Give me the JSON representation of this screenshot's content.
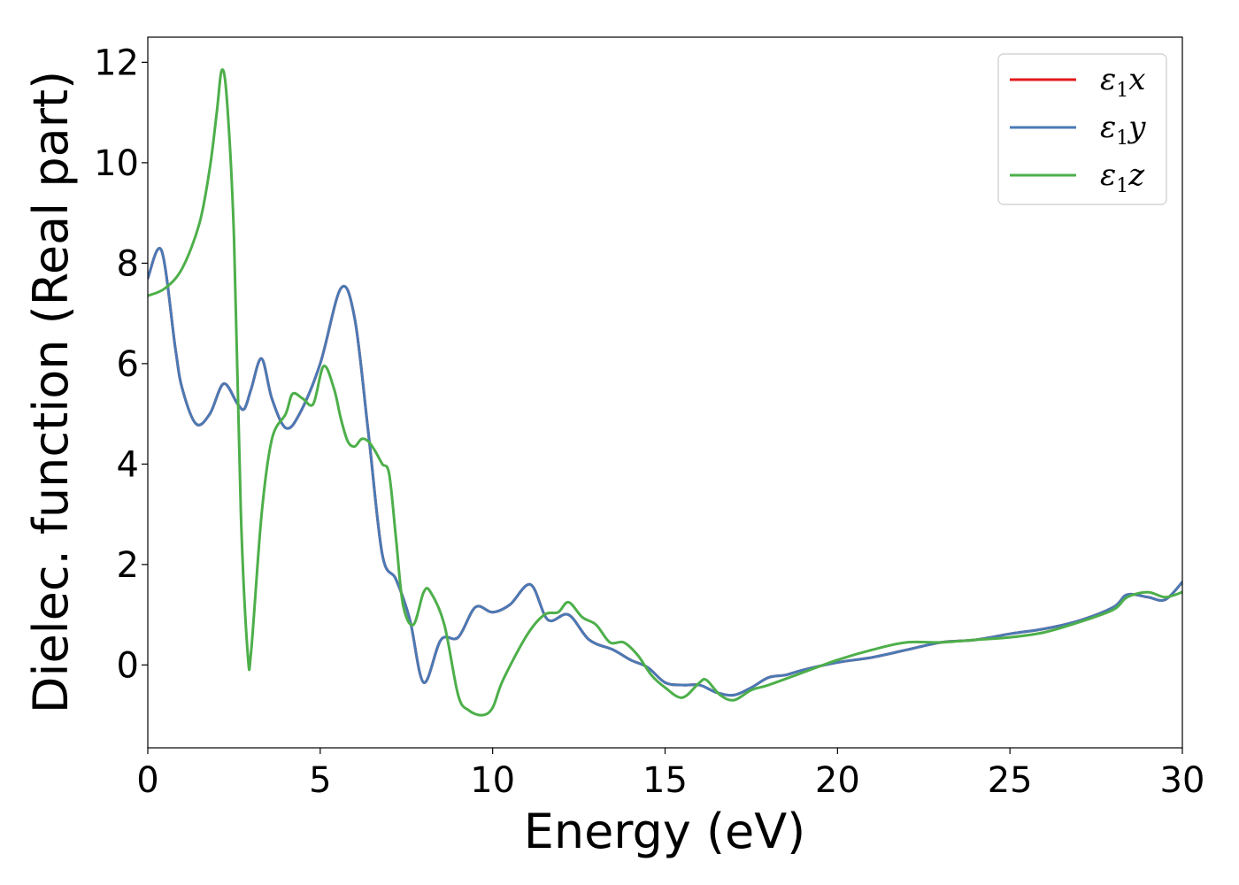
{
  "chart_data": {
    "type": "line",
    "xlabel": "Energy (eV)",
    "ylabel": "Dielec. function (Real part)",
    "xlim": [
      0,
      30
    ],
    "ylim": [
      -1.65,
      12.5
    ],
    "xticks": [
      0,
      5,
      10,
      15,
      20,
      25,
      30
    ],
    "yticks": [
      0,
      2,
      4,
      6,
      8,
      10,
      12
    ],
    "grid": false,
    "legend_position": "top-right",
    "series": [
      {
        "name": "ε1x",
        "legend": {
          "base": "ε",
          "sub": "1",
          "suffix": "x"
        },
        "color": "#e41a1c",
        "x": [
          0,
          0.4,
          0.8,
          1.0,
          1.4,
          1.8,
          2.2,
          2.6,
          2.8,
          3.0,
          3.3,
          3.6,
          4.0,
          4.4,
          5.0,
          5.6,
          6.0,
          6.4,
          6.8,
          7.2,
          7.6,
          8.0,
          8.5,
          9.0,
          9.5,
          10.0,
          10.5,
          11.1,
          11.6,
          12.2,
          12.8,
          13.5,
          14.0,
          14.5,
          15.0,
          15.5,
          16.0,
          16.5,
          17.0,
          17.5,
          18.0,
          18.5,
          19.0,
          20.0,
          21.0,
          22.0,
          23.0,
          24.0,
          25.0,
          26.0,
          27.0,
          28.0,
          28.4,
          29.0,
          29.5,
          30.0
        ],
        "y": [
          7.7,
          8.25,
          6.3,
          5.5,
          4.8,
          5.0,
          5.6,
          5.2,
          5.1,
          5.5,
          6.1,
          5.3,
          4.72,
          5.0,
          6.0,
          7.5,
          6.9,
          4.6,
          2.2,
          1.7,
          0.9,
          -0.35,
          0.5,
          0.55,
          1.15,
          1.05,
          1.2,
          1.6,
          0.9,
          1.0,
          0.5,
          0.3,
          0.1,
          -0.05,
          -0.35,
          -0.4,
          -0.4,
          -0.55,
          -0.6,
          -0.45,
          -0.25,
          -0.2,
          -0.1,
          0.05,
          0.15,
          0.3,
          0.45,
          0.5,
          0.62,
          0.72,
          0.88,
          1.15,
          1.4,
          1.35,
          1.3,
          1.65
        ]
      },
      {
        "name": "ε1y",
        "legend": {
          "base": "ε",
          "sub": "1",
          "suffix": "y"
        },
        "color": "#4a7ab5",
        "x": [
          0,
          0.4,
          0.8,
          1.0,
          1.4,
          1.8,
          2.2,
          2.6,
          2.8,
          3.0,
          3.3,
          3.6,
          4.0,
          4.4,
          5.0,
          5.6,
          6.0,
          6.4,
          6.8,
          7.2,
          7.6,
          8.0,
          8.5,
          9.0,
          9.5,
          10.0,
          10.5,
          11.1,
          11.6,
          12.2,
          12.8,
          13.5,
          14.0,
          14.5,
          15.0,
          15.5,
          16.0,
          16.5,
          17.0,
          17.5,
          18.0,
          18.5,
          19.0,
          20.0,
          21.0,
          22.0,
          23.0,
          24.0,
          25.0,
          26.0,
          27.0,
          28.0,
          28.4,
          29.0,
          29.5,
          30.0
        ],
        "y": [
          7.7,
          8.25,
          6.3,
          5.5,
          4.8,
          5.0,
          5.6,
          5.2,
          5.1,
          5.5,
          6.1,
          5.3,
          4.72,
          5.0,
          6.0,
          7.5,
          6.9,
          4.6,
          2.2,
          1.7,
          0.9,
          -0.35,
          0.5,
          0.55,
          1.15,
          1.05,
          1.2,
          1.6,
          0.9,
          1.0,
          0.5,
          0.3,
          0.1,
          -0.05,
          -0.35,
          -0.4,
          -0.4,
          -0.55,
          -0.6,
          -0.45,
          -0.25,
          -0.2,
          -0.1,
          0.05,
          0.15,
          0.3,
          0.45,
          0.5,
          0.62,
          0.72,
          0.88,
          1.15,
          1.4,
          1.35,
          1.3,
          1.65
        ]
      },
      {
        "name": "ε1z",
        "legend": {
          "base": "ε",
          "sub": "1",
          "suffix": "z"
        },
        "color": "#4daf4a",
        "x": [
          0,
          0.5,
          1.0,
          1.5,
          1.8,
          2.0,
          2.15,
          2.3,
          2.5,
          2.7,
          2.9,
          3.0,
          3.3,
          3.6,
          4.0,
          4.2,
          4.5,
          4.8,
          5.1,
          5.4,
          5.6,
          5.8,
          6.0,
          6.2,
          6.4,
          6.6,
          6.8,
          7.0,
          7.2,
          7.4,
          7.7,
          8.0,
          8.2,
          8.6,
          9.0,
          9.3,
          9.7,
          10.0,
          10.3,
          11.0,
          11.5,
          11.9,
          12.2,
          12.6,
          13.0,
          13.4,
          13.8,
          14.2,
          14.6,
          15.0,
          15.5,
          16.0,
          16.2,
          16.6,
          17.0,
          17.5,
          18.0,
          19.0,
          20.0,
          21.0,
          22.0,
          23.0,
          24.0,
          25.0,
          26.0,
          27.0,
          28.0,
          28.4,
          29.0,
          29.5,
          30.0
        ],
        "y": [
          7.35,
          7.5,
          7.9,
          8.8,
          9.9,
          11.0,
          11.85,
          11.2,
          8.5,
          3.0,
          0.2,
          0.3,
          3.0,
          4.5,
          5.0,
          5.4,
          5.3,
          5.2,
          5.95,
          5.5,
          4.9,
          4.45,
          4.35,
          4.5,
          4.45,
          4.25,
          4.0,
          3.8,
          2.5,
          1.2,
          0.8,
          1.45,
          1.45,
          0.8,
          -0.6,
          -0.9,
          -1.0,
          -0.85,
          -0.3,
          0.6,
          1.0,
          1.05,
          1.25,
          0.95,
          0.8,
          0.45,
          0.45,
          0.2,
          -0.2,
          -0.45,
          -0.65,
          -0.35,
          -0.3,
          -0.6,
          -0.7,
          -0.5,
          -0.4,
          -0.15,
          0.1,
          0.3,
          0.45,
          0.45,
          0.5,
          0.55,
          0.65,
          0.85,
          1.1,
          1.35,
          1.45,
          1.35,
          1.45
        ]
      }
    ]
  }
}
